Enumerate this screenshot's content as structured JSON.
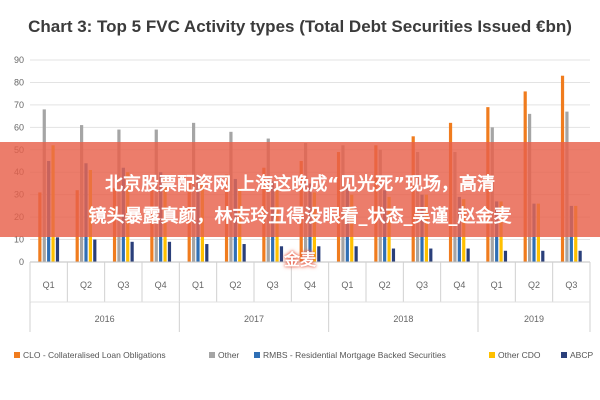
{
  "chart_data": {
    "type": "bar",
    "title": "Chart 3: Top 5 FVC Activity types (Total Debt Securities Issued €bn)",
    "xlabel": "",
    "ylabel": "",
    "ylim": [
      0,
      90
    ],
    "yticks": [
      0,
      10,
      20,
      30,
      40,
      50,
      60,
      70,
      80,
      90
    ],
    "grid": true,
    "legend_position": "bottom",
    "categories": [
      "Q1",
      "Q2",
      "Q3",
      "Q4",
      "Q1",
      "Q2",
      "Q3",
      "Q4",
      "Q1",
      "Q2",
      "Q3",
      "Q4",
      "Q1",
      "Q2",
      "Q3"
    ],
    "years": [
      {
        "label": "2016",
        "quarters": 4
      },
      {
        "label": "2017",
        "quarters": 4
      },
      {
        "label": "2018",
        "quarters": 4
      },
      {
        "label": "2019",
        "quarters": 3
      }
    ],
    "series": [
      {
        "name": "CLO - Collateralised Loan Obligations",
        "color": "#f07c1e",
        "values": [
          31,
          32,
          33,
          34,
          36,
          39,
          42,
          45,
          49,
          52,
          56,
          62,
          69,
          76,
          83
        ]
      },
      {
        "name": "Other",
        "color": "#a5a5a5",
        "values": [
          68,
          61,
          59,
          59,
          62,
          58,
          55,
          53,
          52,
          50,
          49,
          49,
          60,
          66,
          67
        ]
      },
      {
        "name": "RMBS - Residential Mortgage Backed Securities",
        "color": "#2f6fb5",
        "values": [
          45,
          44,
          42,
          40,
          38,
          37,
          36,
          35,
          33,
          32,
          30,
          29,
          27,
          26,
          25
        ]
      },
      {
        "name": "Other CDO",
        "color": "#ffc000",
        "values": [
          52,
          41,
          40,
          37,
          36,
          33,
          32,
          31,
          30,
          29,
          30,
          28,
          27,
          26,
          25
        ]
      },
      {
        "name": "ABCP",
        "color": "#2a3f7a",
        "values": [
          11,
          10,
          9,
          9,
          8,
          8,
          7,
          7,
          7,
          6,
          6,
          6,
          5,
          5,
          5
        ]
      }
    ]
  },
  "overlay": {
    "line1": "北京股票配资网 上海这晚成“见光死”现场，高清",
    "line2": "镜头暴露真颜，林志玲丑得没眼看_状态_吴谨_赵金麦",
    "line3": "金麦"
  }
}
